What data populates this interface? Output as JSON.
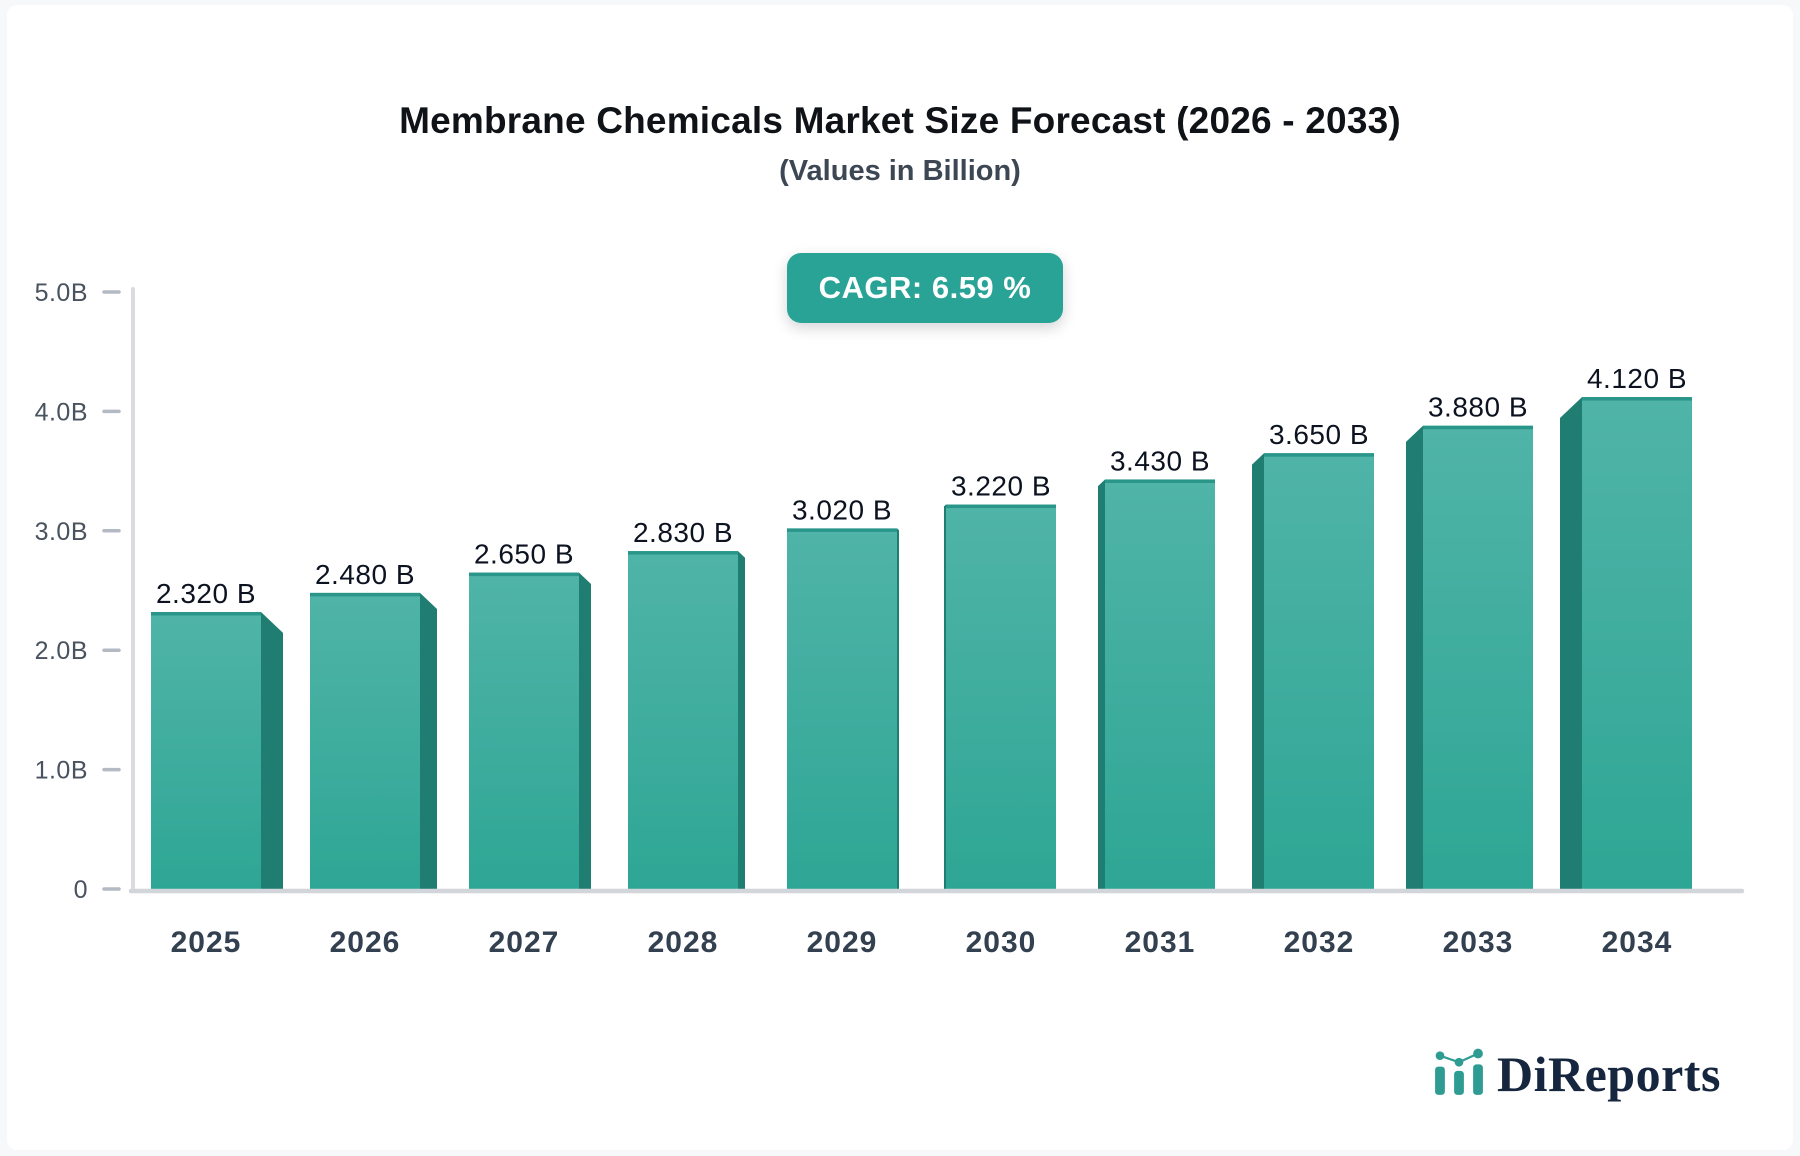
{
  "header": {
    "title": "Membrane Chemicals Market Size Forecast (2026 - 2033)",
    "subtitle": "(Values in Billion)"
  },
  "badge": {
    "label": "CAGR: 6.59 %",
    "background": "#2aa397",
    "text_color": "#ffffff"
  },
  "chart_data": {
    "type": "bar",
    "title": "Membrane Chemicals Market Size Forecast (2026 - 2033)",
    "subtitle": "(Values in Billion)",
    "annotation": "CAGR: 6.59 %",
    "unit": "Billion",
    "categories": [
      "2025",
      "2026",
      "2027",
      "2028",
      "2029",
      "2030",
      "2031",
      "2032",
      "2033",
      "2034"
    ],
    "values": [
      2.32,
      2.48,
      2.65,
      2.83,
      3.02,
      3.22,
      3.43,
      3.65,
      3.88,
      4.12
    ],
    "value_labels": [
      "2.320 B",
      "2.480 B",
      "2.650 B",
      "2.830 B",
      "3.020 B",
      "3.220 B",
      "3.430 B",
      "3.650 B",
      "3.880 B",
      "4.120 B"
    ],
    "ylim": [
      0,
      5
    ],
    "y_ticks": [
      {
        "value": 5,
        "label": "5.0B"
      },
      {
        "value": 4,
        "label": "4.0B"
      },
      {
        "value": 3,
        "label": "3.0B"
      },
      {
        "value": 2,
        "label": "2.0B"
      },
      {
        "value": 1,
        "label": "1.0B"
      },
      {
        "value": 0,
        "label": "0"
      }
    ],
    "grid": false,
    "legend": false,
    "style": {
      "bar_face_top": "#50b4a8",
      "bar_face_bottom": "#2ea695",
      "bar_side": "#1f7d71",
      "bar_top_edge": "#2a968a",
      "axis_line": "#d9dbdf",
      "baseline": "#d2d6db",
      "tick_dash": "#b4bac3",
      "tick_label_color": "#49525f",
      "x_label_color": "#33404f",
      "value_label_color": "#0c1220"
    }
  },
  "branding": {
    "logo_text": "DiReports",
    "logo_icon": "mini-bar-line-chart-icon",
    "text_color": "#17263f",
    "accent_color": "#2e9c92"
  }
}
